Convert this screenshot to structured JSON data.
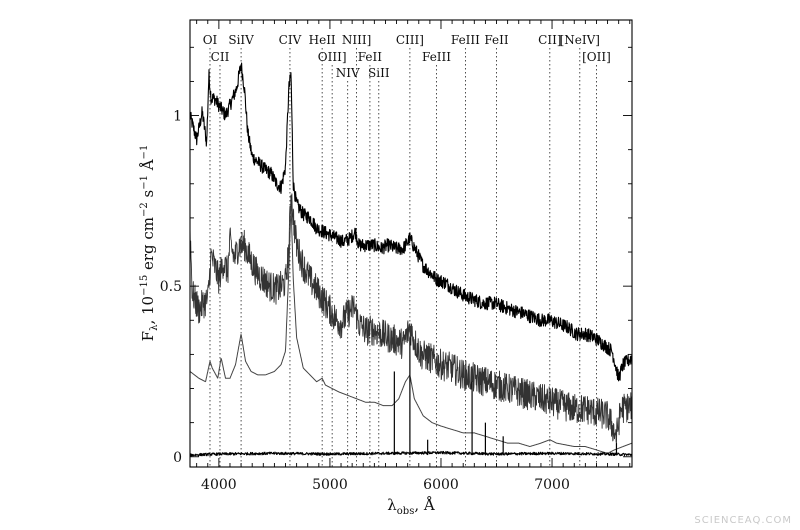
{
  "chart_data": {
    "type": "line",
    "title": "",
    "xlabel_main": "λ",
    "xlabel_sub": "obs",
    "xlabel_tail": ", Å",
    "ylabel_main": "F",
    "ylabel_sub": "λ",
    "ylabel_tail": ", 10",
    "ylabel_exp1": "−15",
    "ylabel_mid": " erg cm",
    "ylabel_exp2": "−2",
    "ylabel_s": " s",
    "ylabel_exp3": "−1",
    "ylabel_end": " Å",
    "ylabel_exp4": "−1",
    "xlim": [
      3740,
      7720
    ],
    "ylim": [
      -0.03,
      1.28
    ],
    "xticks": [
      4000,
      5000,
      6000,
      7000
    ],
    "yticks": [
      0,
      0.5,
      1
    ],
    "ytick_labels": [
      "0",
      "0.5",
      "1"
    ],
    "grid": false,
    "legend": "none",
    "emission_lines": [
      {
        "label": "OI",
        "x": 3920,
        "row": 1
      },
      {
        "label": "CII",
        "x": 4010,
        "row": 2
      },
      {
        "label": "SiIV",
        "x": 4200,
        "row": 1
      },
      {
        "label": "CIV",
        "x": 4640,
        "row": 1
      },
      {
        "label": "HeII",
        "x": 4930,
        "row": 1
      },
      {
        "label": "OIII]",
        "x": 5020,
        "row": 2
      },
      {
        "label": "NIV",
        "x": 5160,
        "row": 3
      },
      {
        "label": "NIII]",
        "x": 5240,
        "row": 1
      },
      {
        "label": "FeII",
        "x": 5360,
        "row": 2
      },
      {
        "label": "SiII",
        "x": 5440,
        "row": 3
      },
      {
        "label": "CIII]",
        "x": 5720,
        "row": 1
      },
      {
        "label": "FeIII",
        "x": 5960,
        "row": 2
      },
      {
        "label": "FeIII",
        "x": 6220,
        "row": 1
      },
      {
        "label": "FeII",
        "x": 6500,
        "row": 1
      },
      {
        "label": "CII]",
        "x": 6980,
        "row": 1
      },
      {
        "label": "[NeIV]",
        "x": 7250,
        "row": 1
      },
      {
        "label": "[OII]",
        "x": 7400,
        "row": 2
      }
    ],
    "series": [
      {
        "id": "top-spectrum",
        "noise": 0.02,
        "stroke": "#000000",
        "width": 1.1,
        "points": [
          [
            3740,
            1.0
          ],
          [
            3800,
            0.93
          ],
          [
            3850,
            1.01
          ],
          [
            3890,
            0.92
          ],
          [
            3910,
            1.12
          ],
          [
            3930,
            1.05
          ],
          [
            3960,
            1.05
          ],
          [
            4000,
            1.03
          ],
          [
            4060,
            1.0
          ],
          [
            4100,
            1.03
          ],
          [
            4160,
            1.08
          ],
          [
            4200,
            1.15
          ],
          [
            4230,
            1.08
          ],
          [
            4260,
            0.95
          ],
          [
            4300,
            0.88
          ],
          [
            4360,
            0.86
          ],
          [
            4420,
            0.84
          ],
          [
            4470,
            0.83
          ],
          [
            4520,
            0.8
          ],
          [
            4560,
            0.79
          ],
          [
            4600,
            0.85
          ],
          [
            4630,
            1.08
          ],
          [
            4650,
            1.12
          ],
          [
            4670,
            0.8
          ],
          [
            4700,
            0.74
          ],
          [
            4760,
            0.71
          ],
          [
            4820,
            0.7
          ],
          [
            4880,
            0.67
          ],
          [
            4940,
            0.66
          ],
          [
            5000,
            0.65
          ],
          [
            5060,
            0.64
          ],
          [
            5120,
            0.63
          ],
          [
            5180,
            0.64
          ],
          [
            5230,
            0.66
          ],
          [
            5260,
            0.62
          ],
          [
            5320,
            0.62
          ],
          [
            5400,
            0.62
          ],
          [
            5460,
            0.61
          ],
          [
            5520,
            0.62
          ],
          [
            5600,
            0.61
          ],
          [
            5660,
            0.61
          ],
          [
            5720,
            0.64
          ],
          [
            5780,
            0.6
          ],
          [
            5840,
            0.56
          ],
          [
            5900,
            0.54
          ],
          [
            5960,
            0.52
          ],
          [
            6040,
            0.51
          ],
          [
            6120,
            0.49
          ],
          [
            6220,
            0.47
          ],
          [
            6300,
            0.46
          ],
          [
            6380,
            0.45
          ],
          [
            6480,
            0.45
          ],
          [
            6560,
            0.44
          ],
          [
            6640,
            0.43
          ],
          [
            6740,
            0.42
          ],
          [
            6820,
            0.41
          ],
          [
            6900,
            0.4
          ],
          [
            6980,
            0.4
          ],
          [
            7060,
            0.39
          ],
          [
            7140,
            0.38
          ],
          [
            7220,
            0.36
          ],
          [
            7300,
            0.36
          ],
          [
            7380,
            0.35
          ],
          [
            7460,
            0.33
          ],
          [
            7540,
            0.31
          ],
          [
            7600,
            0.23
          ],
          [
            7640,
            0.27
          ],
          [
            7720,
            0.29
          ]
        ]
      },
      {
        "id": "middle-spectrum",
        "noise": 0.045,
        "stroke": "#333333",
        "width": 0.9,
        "points": [
          [
            3740,
            0.68
          ],
          [
            3760,
            0.48
          ],
          [
            3820,
            0.43
          ],
          [
            3860,
            0.45
          ],
          [
            3900,
            0.46
          ],
          [
            3930,
            0.59
          ],
          [
            3960,
            0.56
          ],
          [
            4000,
            0.52
          ],
          [
            4040,
            0.57
          ],
          [
            4080,
            0.54
          ],
          [
            4100,
            0.63
          ],
          [
            4140,
            0.58
          ],
          [
            4180,
            0.62
          ],
          [
            4230,
            0.62
          ],
          [
            4280,
            0.58
          ],
          [
            4340,
            0.54
          ],
          [
            4400,
            0.52
          ],
          [
            4460,
            0.5
          ],
          [
            4520,
            0.49
          ],
          [
            4600,
            0.51
          ],
          [
            4630,
            0.61
          ],
          [
            4650,
            0.78
          ],
          [
            4670,
            0.7
          ],
          [
            4700,
            0.62
          ],
          [
            4760,
            0.56
          ],
          [
            4820,
            0.52
          ],
          [
            4880,
            0.49
          ],
          [
            4940,
            0.46
          ],
          [
            5000,
            0.43
          ],
          [
            5060,
            0.4
          ],
          [
            5100,
            0.39
          ],
          [
            5160,
            0.42
          ],
          [
            5220,
            0.44
          ],
          [
            5260,
            0.39
          ],
          [
            5320,
            0.37
          ],
          [
            5400,
            0.37
          ],
          [
            5460,
            0.36
          ],
          [
            5520,
            0.35
          ],
          [
            5600,
            0.34
          ],
          [
            5660,
            0.33
          ],
          [
            5720,
            0.38
          ],
          [
            5760,
            0.34
          ],
          [
            5820,
            0.3
          ],
          [
            5900,
            0.29
          ],
          [
            6000,
            0.27
          ],
          [
            6100,
            0.26
          ],
          [
            6200,
            0.24
          ],
          [
            6300,
            0.23
          ],
          [
            6400,
            0.22
          ],
          [
            6500,
            0.21
          ],
          [
            6600,
            0.2
          ],
          [
            6700,
            0.19
          ],
          [
            6800,
            0.18
          ],
          [
            6900,
            0.17
          ],
          [
            7000,
            0.16
          ],
          [
            7100,
            0.15
          ],
          [
            7200,
            0.14
          ],
          [
            7300,
            0.14
          ],
          [
            7400,
            0.13
          ],
          [
            7500,
            0.12
          ],
          [
            7580,
            0.06
          ],
          [
            7620,
            0.14
          ],
          [
            7720,
            0.15
          ]
        ]
      },
      {
        "id": "smooth-spectrum",
        "noise": 0,
        "stroke": "#444444",
        "width": 1.0,
        "points": [
          [
            3740,
            0.25
          ],
          [
            3820,
            0.23
          ],
          [
            3880,
            0.22
          ],
          [
            3920,
            0.28
          ],
          [
            3940,
            0.26
          ],
          [
            3990,
            0.23
          ],
          [
            4020,
            0.29
          ],
          [
            4060,
            0.23
          ],
          [
            4100,
            0.23
          ],
          [
            4150,
            0.27
          ],
          [
            4200,
            0.36
          ],
          [
            4240,
            0.28
          ],
          [
            4290,
            0.25
          ],
          [
            4350,
            0.24
          ],
          [
            4420,
            0.24
          ],
          [
            4500,
            0.25
          ],
          [
            4560,
            0.27
          ],
          [
            4600,
            0.31
          ],
          [
            4630,
            0.55
          ],
          [
            4650,
            0.74
          ],
          [
            4670,
            0.52
          ],
          [
            4700,
            0.35
          ],
          [
            4760,
            0.26
          ],
          [
            4820,
            0.24
          ],
          [
            4880,
            0.22
          ],
          [
            4930,
            0.23
          ],
          [
            4960,
            0.21
          ],
          [
            5020,
            0.2
          ],
          [
            5080,
            0.19
          ],
          [
            5160,
            0.18
          ],
          [
            5240,
            0.17
          ],
          [
            5320,
            0.16
          ],
          [
            5400,
            0.16
          ],
          [
            5480,
            0.15
          ],
          [
            5560,
            0.15
          ],
          [
            5620,
            0.17
          ],
          [
            5680,
            0.22
          ],
          [
            5720,
            0.24
          ],
          [
            5760,
            0.17
          ],
          [
            5840,
            0.12
          ],
          [
            5920,
            0.1
          ],
          [
            6000,
            0.09
          ],
          [
            6100,
            0.08
          ],
          [
            6200,
            0.07
          ],
          [
            6300,
            0.07
          ],
          [
            6400,
            0.06
          ],
          [
            6500,
            0.05
          ],
          [
            6600,
            0.04
          ],
          [
            6700,
            0.04
          ],
          [
            6800,
            0.03
          ],
          [
            6900,
            0.04
          ],
          [
            6980,
            0.05
          ],
          [
            7040,
            0.04
          ],
          [
            7200,
            0.03
          ],
          [
            7300,
            0.03
          ],
          [
            7400,
            0.02
          ],
          [
            7500,
            0.01
          ],
          [
            7560,
            0.02
          ],
          [
            7640,
            0.03
          ],
          [
            7720,
            0.04
          ]
        ]
      },
      {
        "id": "flat-spectrum",
        "noise": 0.004,
        "stroke": "#000000",
        "width": 1.0,
        "points": [
          [
            3740,
            0.005
          ],
          [
            4000,
            0.008
          ],
          [
            4500,
            0.01
          ],
          [
            5000,
            0.008
          ],
          [
            5500,
            0.01
          ],
          [
            6000,
            0.012
          ],
          [
            6500,
            0.008
          ],
          [
            7000,
            0.01
          ],
          [
            7500,
            0.008
          ],
          [
            7720,
            0.006
          ]
        ]
      }
    ],
    "spikes": [
      {
        "x": 5580,
        "y": 0.25,
        "series": "middle-spectrum"
      },
      {
        "x": 5720,
        "y": 0.35,
        "series": "top-spectrum"
      },
      {
        "x": 6280,
        "y": 0.22,
        "series": "middle-spectrum"
      },
      {
        "x": 6400,
        "y": 0.1,
        "series": "middle-spectrum"
      },
      {
        "x": 5880,
        "y": 0.05,
        "series": "flat-spectrum"
      },
      {
        "x": 6560,
        "y": 0.06,
        "series": "flat-spectrum"
      },
      {
        "x": 7580,
        "y": 0.04,
        "series": "flat-spectrum"
      }
    ]
  },
  "watermark": "SCIENCEAQ.COM"
}
